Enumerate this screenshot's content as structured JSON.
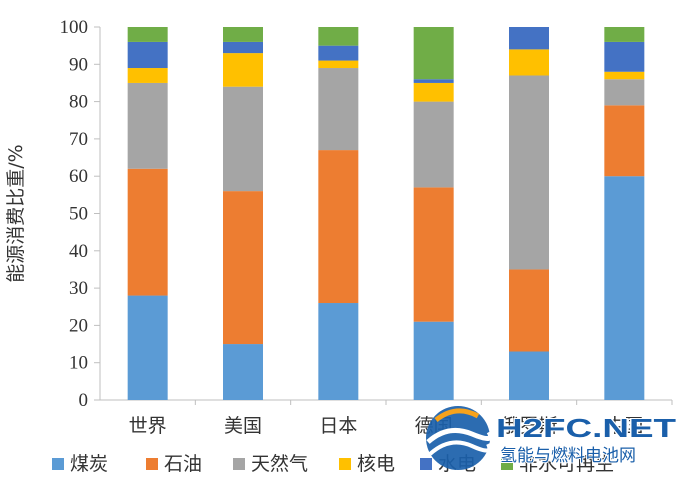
{
  "chart_data": {
    "type": "bar",
    "stacked": true,
    "ylabel": "能源消费比重/%",
    "ylim": [
      0,
      100
    ],
    "yticks": [
      0,
      10,
      20,
      30,
      40,
      50,
      60,
      70,
      80,
      90,
      100
    ],
    "categories": [
      "世界",
      "美国",
      "日本",
      "德国",
      "俄罗斯",
      "中国"
    ],
    "series": [
      {
        "name": "煤炭",
        "color": "#5B9BD5",
        "values": [
          28,
          15,
          26,
          21,
          13,
          60
        ]
      },
      {
        "name": "石油",
        "color": "#ED7D31",
        "values": [
          34,
          41,
          41,
          36,
          22,
          19
        ]
      },
      {
        "name": "天然气",
        "color": "#A5A5A5",
        "values": [
          23,
          28,
          22,
          23,
          52,
          7
        ]
      },
      {
        "name": "核电",
        "color": "#FFC000",
        "values": [
          4,
          9,
          2,
          5,
          7,
          2
        ]
      },
      {
        "name": "水电",
        "color": "#4472C4",
        "values": [
          7,
          3,
          4,
          1,
          6,
          8
        ]
      },
      {
        "name": "非水可再生",
        "color": "#70AD47",
        "values": [
          4,
          4,
          5,
          14,
          0,
          4
        ]
      }
    ],
    "grid": false,
    "legend_position": "bottom"
  },
  "watermark": {
    "brand": "H2FC.NET",
    "tagline": "氢能与燃料电池网"
  }
}
